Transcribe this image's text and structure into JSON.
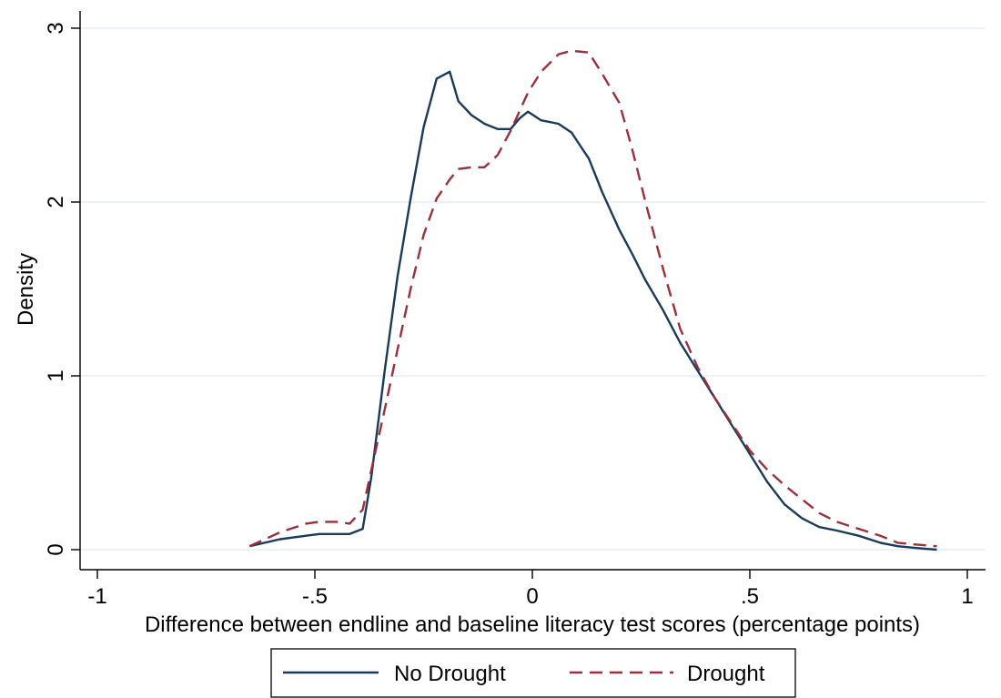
{
  "chart_data": {
    "type": "line",
    "title": "",
    "xlabel": "Difference between endline and baseline literacy test scores (percentage points)",
    "ylabel": "Density",
    "xlim": [
      -1,
      1
    ],
    "ylim": [
      0,
      3
    ],
    "xticks": [
      {
        "value": -1,
        "label": "-1"
      },
      {
        "value": -0.5,
        "label": "-.5"
      },
      {
        "value": 0,
        "label": "0"
      },
      {
        "value": 0.5,
        "label": ".5"
      },
      {
        "value": 1,
        "label": "1"
      }
    ],
    "yticks": [
      {
        "value": 0,
        "label": "0"
      },
      {
        "value": 1,
        "label": "1"
      },
      {
        "value": 2,
        "label": "2"
      },
      {
        "value": 3,
        "label": "3"
      }
    ],
    "grid": "horizontal",
    "legend_position": "bottom",
    "series": [
      {
        "name": "No Drought",
        "color": "#1a3a5c",
        "dash": "solid",
        "x": [
          -0.65,
          -0.58,
          -0.52,
          -0.49,
          -0.45,
          -0.42,
          -0.39,
          -0.37,
          -0.34,
          -0.31,
          -0.28,
          -0.25,
          -0.22,
          -0.19,
          -0.17,
          -0.14,
          -0.11,
          -0.08,
          -0.05,
          -0.03,
          -0.01,
          0.02,
          0.06,
          0.09,
          0.13,
          0.16,
          0.2,
          0.23,
          0.26,
          0.3,
          0.34,
          0.38,
          0.42,
          0.46,
          0.5,
          0.54,
          0.58,
          0.62,
          0.66,
          0.7,
          0.75,
          0.8,
          0.84,
          0.88,
          0.93
        ],
        "y": [
          0.02,
          0.06,
          0.08,
          0.09,
          0.09,
          0.09,
          0.12,
          0.42,
          1.02,
          1.57,
          2.02,
          2.43,
          2.71,
          2.75,
          2.58,
          2.5,
          2.45,
          2.42,
          2.42,
          2.48,
          2.52,
          2.47,
          2.45,
          2.4,
          2.25,
          2.06,
          1.84,
          1.7,
          1.55,
          1.38,
          1.19,
          1.03,
          0.87,
          0.71,
          0.55,
          0.39,
          0.26,
          0.18,
          0.13,
          0.11,
          0.08,
          0.04,
          0.02,
          0.01,
          0.0
        ]
      },
      {
        "name": "Drought",
        "color": "#9b2f3a",
        "dash": "dashed",
        "x": [
          -0.65,
          -0.58,
          -0.52,
          -0.49,
          -0.45,
          -0.42,
          -0.39,
          -0.37,
          -0.34,
          -0.31,
          -0.28,
          -0.25,
          -0.22,
          -0.19,
          -0.17,
          -0.14,
          -0.11,
          -0.08,
          -0.05,
          -0.03,
          -0.01,
          0.02,
          0.06,
          0.09,
          0.13,
          0.16,
          0.2,
          0.23,
          0.26,
          0.3,
          0.34,
          0.38,
          0.42,
          0.46,
          0.5,
          0.54,
          0.58,
          0.62,
          0.66,
          0.7,
          0.75,
          0.8,
          0.84,
          0.88,
          0.93
        ],
        "y": [
          0.02,
          0.1,
          0.15,
          0.16,
          0.16,
          0.15,
          0.23,
          0.46,
          0.8,
          1.15,
          1.5,
          1.81,
          2.02,
          2.13,
          2.19,
          2.2,
          2.2,
          2.27,
          2.41,
          2.52,
          2.63,
          2.75,
          2.85,
          2.87,
          2.86,
          2.74,
          2.57,
          2.3,
          2.0,
          1.62,
          1.27,
          1.05,
          0.87,
          0.72,
          0.57,
          0.46,
          0.37,
          0.29,
          0.21,
          0.16,
          0.12,
          0.08,
          0.04,
          0.03,
          0.02
        ]
      }
    ]
  }
}
